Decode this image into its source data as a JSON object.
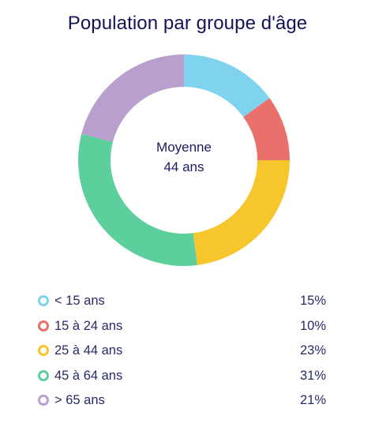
{
  "chart_data": {
    "type": "pie",
    "title": "Population par groupe d'âge",
    "center_label": [
      "Moyenne",
      "44 ans"
    ],
    "categories": [
      "< 15 ans",
      "15 à 24 ans",
      "25 à 44 ans",
      "45 à 64 ans",
      "> 65 ans"
    ],
    "values": [
      15,
      10,
      23,
      31,
      21
    ],
    "value_labels": [
      "15%",
      "10%",
      "23%",
      "31%",
      "21%"
    ],
    "colors": [
      "#7fd3ee",
      "#e9706b",
      "#f7c52c",
      "#5ccf9d",
      "#b89fcd"
    ],
    "legend_position": "bottom"
  }
}
